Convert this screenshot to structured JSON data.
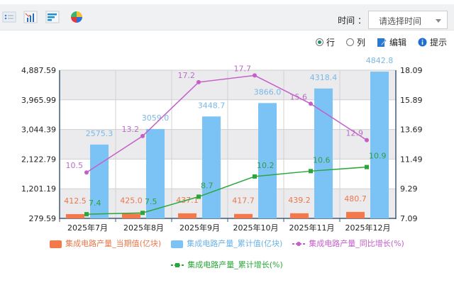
{
  "toolbar": {
    "icons": [
      "list-view-icon",
      "bar-chart-icon",
      "horizontal-bar-icon",
      "pie-chart-icon"
    ],
    "time_label": "时间 ：",
    "time_placeholder": "请选择时间"
  },
  "options": {
    "row_label": "行",
    "col_label": "列",
    "row_selected": true,
    "edit_label": "编辑",
    "hint_label": "提示"
  },
  "chart_data": {
    "type": "bar",
    "categories": [
      "2025年7月",
      "2025年8月",
      "2025年9月",
      "2025年10月",
      "2025年11月",
      "2025年12月"
    ],
    "y_left": {
      "ylim": [
        279.59,
        4887.59
      ],
      "ticks": [
        "4,887.59",
        "3,965.99",
        "3,044.39",
        "2,122.79",
        "1,201.19",
        "279.59"
      ]
    },
    "y_right": {
      "ylim": [
        7.09,
        18.09
      ],
      "ticks": [
        "18.09",
        "15.89",
        "13.69",
        "11.49",
        "9.29",
        "7.09"
      ]
    },
    "grid": true,
    "legend_position": "bottom",
    "series": [
      {
        "name": "集成电路产量_当期值(亿块)",
        "type": "bar",
        "axis": "left",
        "color": "#f4784a",
        "values": [
          412.5,
          425.0,
          437.1,
          417.7,
          439.2,
          480.7
        ],
        "labels": [
          "412.5",
          "425.0",
          "437.1",
          "417.7",
          "439.2",
          "480.7"
        ]
      },
      {
        "name": "集成电路产量_累计值(亿块)",
        "type": "bar",
        "axis": "left",
        "color": "#7cc3f5",
        "values": [
          2575.3,
          3059.0,
          3448.7,
          3866.0,
          4318.4,
          4842.8
        ],
        "labels": [
          "2575.3",
          "3059.0",
          "3448.7",
          "3866.0",
          "4318.4",
          "4842.8"
        ]
      },
      {
        "name": "集成电路产量_同比增长(%)",
        "type": "line",
        "axis": "right",
        "color": "#c45fc9",
        "values": [
          10.5,
          13.2,
          17.2,
          17.7,
          15.6,
          12.9
        ],
        "labels": [
          "10.5",
          "13.2",
          "17.2",
          "17.7",
          "15.6",
          "12.9"
        ]
      },
      {
        "name": "集成电路产量_累计增长(%)",
        "type": "line",
        "axis": "right",
        "color": "#2aa73a",
        "values": [
          7.4,
          7.5,
          8.7,
          10.2,
          10.6,
          10.9
        ],
        "labels": [
          "7.4",
          "7.5",
          "8.7",
          "10.2",
          "10.6",
          "10.9"
        ]
      }
    ]
  }
}
